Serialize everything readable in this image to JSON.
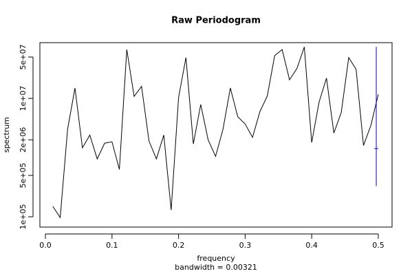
{
  "chart_data": {
    "type": "line",
    "title": "Raw Periodogram",
    "xlabel": "frequency",
    "sub": "bandwidth = 0.00321",
    "ylabel": "spectrum",
    "log_y": true,
    "color": "#000000",
    "x": [
      0.0111,
      0.0222,
      0.0333,
      0.0444,
      0.0556,
      0.0667,
      0.0778,
      0.0889,
      0.1,
      0.1111,
      0.1222,
      0.1333,
      0.1444,
      0.1556,
      0.1667,
      0.1778,
      0.1889,
      0.2,
      0.2111,
      0.2222,
      0.2333,
      0.2444,
      0.2556,
      0.2667,
      0.2778,
      0.2889,
      0.3,
      0.3111,
      0.3222,
      0.3333,
      0.3444,
      0.3556,
      0.3667,
      0.3778,
      0.3889,
      0.4,
      0.4111,
      0.4222,
      0.4333,
      0.4444,
      0.4556,
      0.4667,
      0.4778,
      0.4889,
      0.5
    ],
    "values": [
      150000,
      97000,
      3000000,
      15000000,
      1460000,
      2400000,
      950000,
      1750000,
      1850000,
      630000,
      67000000,
      10800000,
      16000000,
      1900000,
      950000,
      2400000,
      130000,
      10300000,
      49000000,
      1700000,
      7900000,
      2000000,
      1050000,
      3000000,
      15000000,
      4900000,
      3700000,
      2200000,
      6000000,
      11000000,
      53000000,
      67000000,
      20600000,
      32000000,
      74000000,
      1800000,
      8700000,
      22000000,
      2600000,
      5800000,
      49000000,
      31000000,
      1600000,
      3500000,
      11700000
    ],
    "ci_bar": {
      "x": 0.497,
      "center": 1420000,
      "lower": 330000,
      "upper": 74000000,
      "color": "#0000ff"
    },
    "xlim": [
      -0.0083,
      0.5207
    ],
    "ylim": [
      67000,
      87500000
    ],
    "xticks": [
      {
        "value": 0,
        "label": "0.0"
      },
      0.1,
      0.2,
      0.3,
      0.4,
      0.5
    ],
    "yticks": [
      {
        "value": 100000,
        "label": "1e+05"
      },
      {
        "value": 500000,
        "label": "5e+05"
      },
      {
        "value": 2000000,
        "label": "2e+06"
      },
      {
        "value": 10000000,
        "label": "1e+07"
      },
      {
        "value": 50000000,
        "label": "5e+07"
      }
    ]
  }
}
